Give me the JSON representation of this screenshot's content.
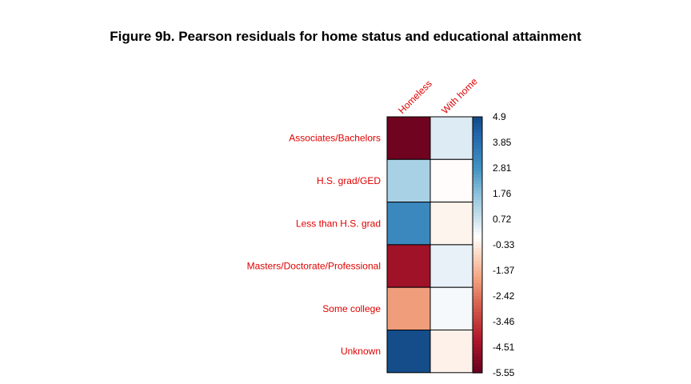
{
  "chart_data": {
    "type": "heatmap",
    "title": "Figure 9b. Pearson residuals for home status and educational attainment",
    "columns": [
      "Homeless",
      "With home"
    ],
    "rows": [
      "Associates/Bachelors",
      "H.S. grad/GED",
      "Less than H.S. grad",
      "Masters/Doctorate/Professional",
      "Some college",
      "Unknown"
    ],
    "values": [
      [
        -5.4,
        0.5
      ],
      [
        1.3,
        -0.05
      ],
      [
        3.1,
        -0.2
      ],
      [
        -4.5,
        0.35
      ],
      [
        -1.8,
        0.15
      ],
      [
        4.8,
        -0.25
      ]
    ],
    "colorbar": {
      "range": [
        -5.55,
        4.9
      ],
      "ticks": [
        "4.9",
        "3.85",
        "2.81",
        "1.76",
        "0.72",
        "-0.33",
        "-1.37",
        "-2.42",
        "-3.46",
        "-4.51",
        "-5.55"
      ]
    },
    "colors": {
      "negative_extreme": "#67001f",
      "neutral": "#ffffff",
      "positive_extreme": "#053061",
      "label_color": "#e00000"
    }
  }
}
